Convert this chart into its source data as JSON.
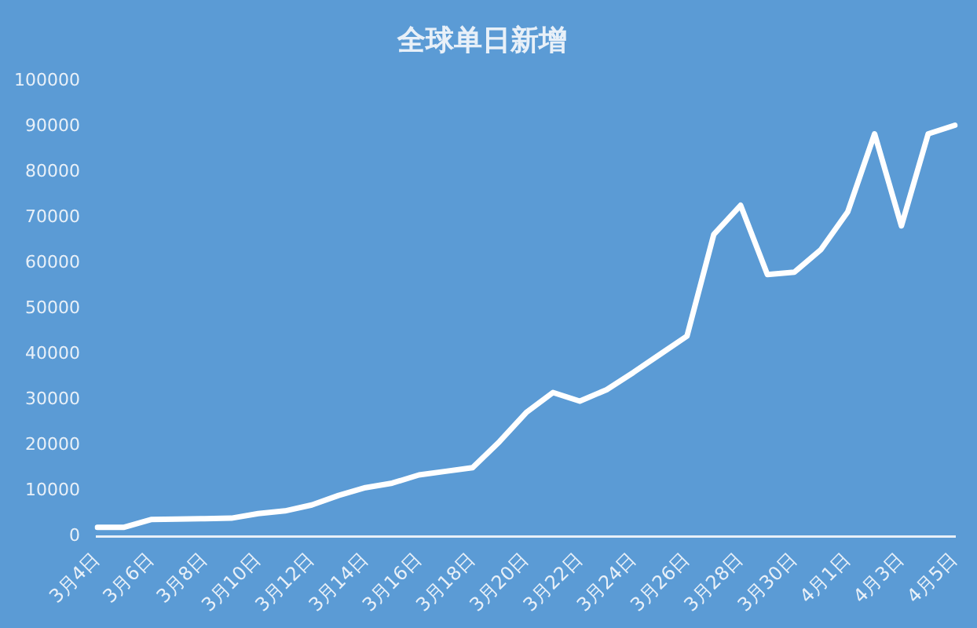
{
  "chart_data": {
    "type": "line",
    "title": "全球单日新增",
    "categories": [
      "3月4日",
      null,
      "3月6日",
      null,
      "3月8日",
      null,
      "3月10日",
      null,
      "3月12日",
      null,
      "3月14日",
      null,
      "3月16日",
      null,
      "3月18日",
      null,
      "3月20日",
      null,
      "3月22日",
      null,
      "3月24日",
      null,
      "3月26日",
      null,
      "3月28日",
      null,
      "3月30日",
      null,
      "4月1日",
      null,
      "4月3日",
      null,
      "4月5日"
    ],
    "series": [
      {
        "color": "#ffffff",
        "values": [
          2000,
          2000,
          3700,
          3800,
          3900,
          4000,
          5000,
          5600,
          6900,
          9000,
          10700,
          11700,
          13500,
          14300,
          15100,
          20800,
          27200,
          31600,
          29700,
          32200,
          36000,
          40000,
          44000,
          66300,
          72700,
          57500,
          58000,
          63000,
          71300,
          88400,
          68200,
          88400,
          90300
        ]
      }
    ],
    "ylim": [
      0,
      100000
    ],
    "yticks": [
      0,
      10000,
      20000,
      30000,
      40000,
      50000,
      60000,
      70000,
      80000,
      90000,
      100000
    ],
    "grid": false,
    "legend": false,
    "marker": "none",
    "line_style": "solid"
  }
}
